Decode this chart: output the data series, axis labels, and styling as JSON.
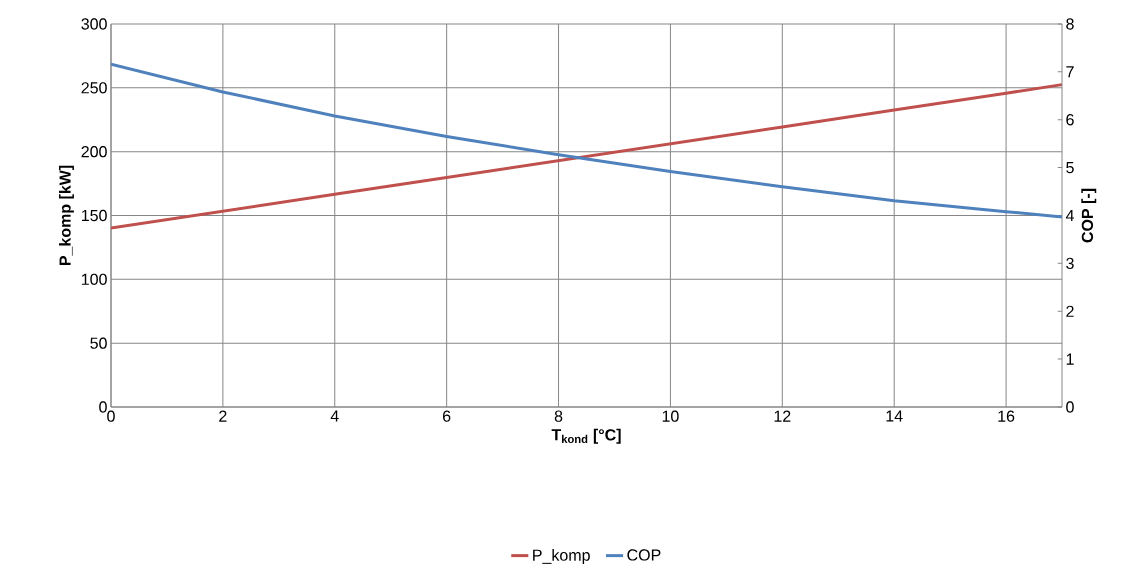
{
  "chart_data": {
    "type": "line",
    "xlabel": "T$_{kond}$ [°C]",
    "ylabel": "P_komp [kW]",
    "y2label": "COP [-]",
    "x": [
      0,
      2,
      4,
      6,
      8,
      10,
      12,
      14,
      16,
      17
    ],
    "series": [
      {
        "name": "P_komp",
        "color": "#c0504d",
        "values": [
          140.2,
          153.4,
          166.6,
          179.8,
          193.0,
          206.2,
          219.4,
          232.6,
          245.8,
          252.5
        ]
      },
      {
        "name": "COP",
        "color": "#4f81bd",
        "axis": "y2",
        "values": [
          7.16,
          6.58,
          6.08,
          5.65,
          5.27,
          4.92,
          4.6,
          4.31,
          4.08,
          3.97
        ]
      }
    ],
    "xlim": [
      0,
      17
    ],
    "xticks": [
      0,
      2,
      4,
      6,
      8,
      10,
      12,
      14,
      16
    ],
    "ylim": [
      0,
      300
    ],
    "yticks": [
      0,
      50,
      100,
      150,
      200,
      250,
      300
    ],
    "y2lim": [
      0,
      8
    ],
    "y2ticks": [
      0,
      1,
      2,
      3,
      4,
      5,
      6,
      7,
      8
    ],
    "grid": true,
    "legend": "bottom",
    "marker": "none",
    "line_style": "solid"
  }
}
